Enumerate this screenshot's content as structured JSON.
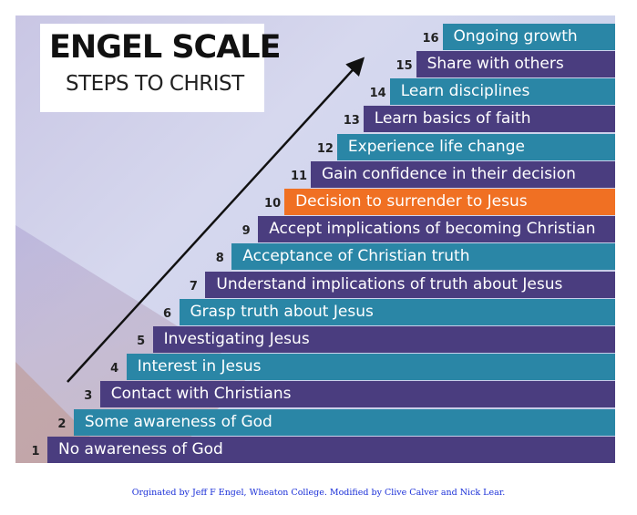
{
  "title": "ENGEL SCALE",
  "subtitle": "STEPS TO CHRIST",
  "colors": {
    "purple": "#4a3d7f",
    "teal": "#2a86a6",
    "highlight": "#f07023"
  },
  "steps": [
    {
      "number": "1",
      "label": "No awareness of God",
      "color": "purple"
    },
    {
      "number": "2",
      "label": "Some awareness of God",
      "color": "teal"
    },
    {
      "number": "3",
      "label": "Contact with Christians",
      "color": "purple"
    },
    {
      "number": "4",
      "label": "Interest in Jesus",
      "color": "teal"
    },
    {
      "number": "5",
      "label": "Investigating Jesus",
      "color": "purple"
    },
    {
      "number": "6",
      "label": "Grasp truth about Jesus",
      "color": "teal"
    },
    {
      "number": "7",
      "label": "Understand implications of truth about Jesus",
      "color": "purple"
    },
    {
      "number": "8",
      "label": "Acceptance of Christian truth",
      "color": "teal"
    },
    {
      "number": "9",
      "label": "Accept implications of becoming Christian",
      "color": "purple"
    },
    {
      "number": "10",
      "label": "Decision to surrender to Jesus",
      "color": "highlight"
    },
    {
      "number": "11",
      "label": "Gain confidence in their decision",
      "color": "purple"
    },
    {
      "number": "12",
      "label": "Experience life change",
      "color": "teal"
    },
    {
      "number": "13",
      "label": "Learn basics of faith",
      "color": "purple"
    },
    {
      "number": "14",
      "label": "Learn disciplines",
      "color": "teal"
    },
    {
      "number": "15",
      "label": "Share with others",
      "color": "purple"
    },
    {
      "number": "16",
      "label": "Ongoing growth",
      "color": "teal"
    }
  ],
  "credit": "Orginated by Jeff F Engel, Wheaton College. Modified by Clive Calver and Nick Lear."
}
